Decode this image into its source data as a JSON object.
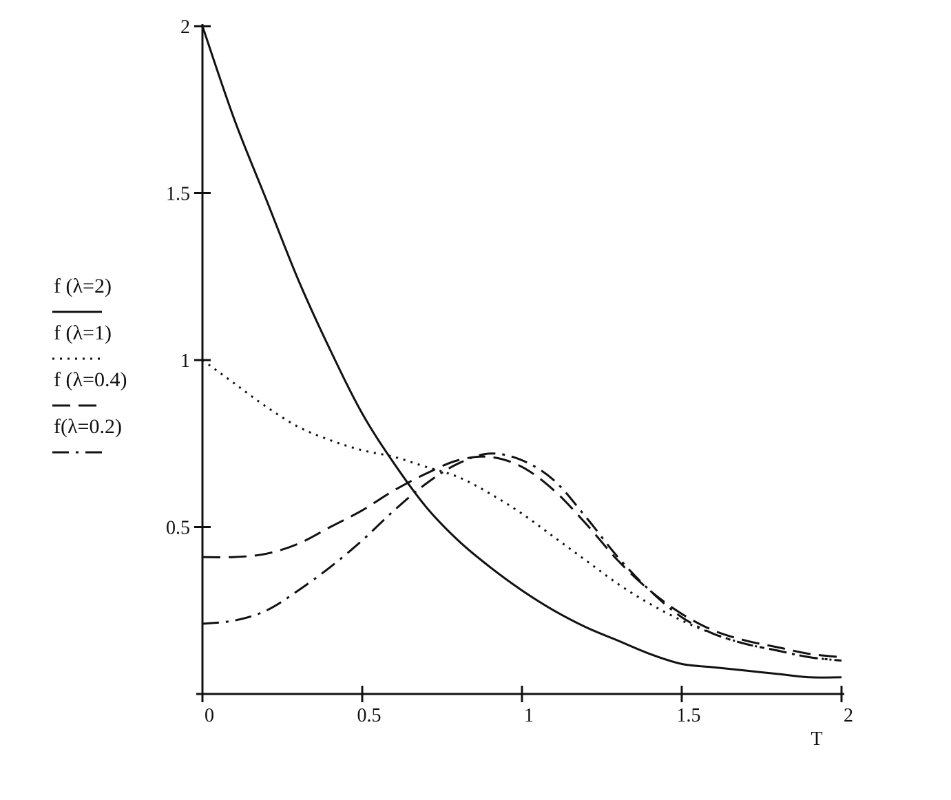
{
  "chart_data": {
    "type": "line",
    "xlabel": "T",
    "ylabel": "",
    "xlim": [
      0,
      2
    ],
    "ylim": [
      0,
      2
    ],
    "x_ticks": [
      0,
      0.5,
      1,
      1.5,
      2
    ],
    "x_tick_labels": [
      "0",
      "0.5",
      "1",
      "1.5",
      "2"
    ],
    "y_ticks": [
      0.5,
      1,
      1.5,
      2
    ],
    "y_tick_labels": [
      "0.5",
      "1",
      "1.5",
      "2"
    ],
    "grid": false,
    "legend_position": "left",
    "series": [
      {
        "name": "f (λ=2)",
        "style": "solid",
        "x": [
          0,
          0.1,
          0.2,
          0.3,
          0.4,
          0.5,
          0.6,
          0.7,
          0.8,
          0.9,
          1.0,
          1.1,
          1.2,
          1.3,
          1.4,
          1.5,
          1.6,
          1.7,
          1.8,
          1.9,
          2.0
        ],
        "y": [
          2.0,
          1.72,
          1.48,
          1.24,
          1.03,
          0.84,
          0.69,
          0.56,
          0.46,
          0.38,
          0.31,
          0.25,
          0.2,
          0.16,
          0.12,
          0.09,
          0.08,
          0.07,
          0.06,
          0.05,
          0.05
        ]
      },
      {
        "name": "f (λ=1)",
        "style": "dotted",
        "x": [
          0,
          0.1,
          0.2,
          0.3,
          0.4,
          0.5,
          0.6,
          0.7,
          0.8,
          0.9,
          1.0,
          1.1,
          1.2,
          1.3,
          1.4,
          1.5,
          1.6,
          1.7,
          1.8,
          1.9,
          2.0
        ],
        "y": [
          1.0,
          0.93,
          0.86,
          0.8,
          0.76,
          0.73,
          0.71,
          0.68,
          0.65,
          0.6,
          0.54,
          0.47,
          0.4,
          0.33,
          0.27,
          0.22,
          0.18,
          0.15,
          0.13,
          0.11,
          0.1
        ]
      },
      {
        "name": "f (λ=0.4)",
        "style": "dashed",
        "x": [
          0,
          0.1,
          0.2,
          0.3,
          0.4,
          0.5,
          0.6,
          0.7,
          0.8,
          0.9,
          1.0,
          1.1,
          1.2,
          1.3,
          1.4,
          1.5,
          1.6,
          1.7,
          1.8,
          1.9,
          2.0
        ],
        "y": [
          0.41,
          0.41,
          0.42,
          0.45,
          0.5,
          0.55,
          0.61,
          0.66,
          0.7,
          0.71,
          0.68,
          0.61,
          0.51,
          0.4,
          0.31,
          0.24,
          0.19,
          0.16,
          0.14,
          0.12,
          0.11
        ]
      },
      {
        "name": "f(λ=0.2)",
        "style": "dash-dot",
        "x": [
          0,
          0.1,
          0.2,
          0.3,
          0.4,
          0.5,
          0.6,
          0.7,
          0.8,
          0.9,
          1.0,
          1.1,
          1.2,
          1.3,
          1.4,
          1.5,
          1.6,
          1.7,
          1.8,
          1.9,
          2.0
        ],
        "y": [
          0.21,
          0.22,
          0.25,
          0.31,
          0.38,
          0.46,
          0.55,
          0.63,
          0.69,
          0.72,
          0.7,
          0.64,
          0.53,
          0.41,
          0.31,
          0.23,
          0.18,
          0.15,
          0.13,
          0.11,
          0.1
        ]
      }
    ]
  }
}
